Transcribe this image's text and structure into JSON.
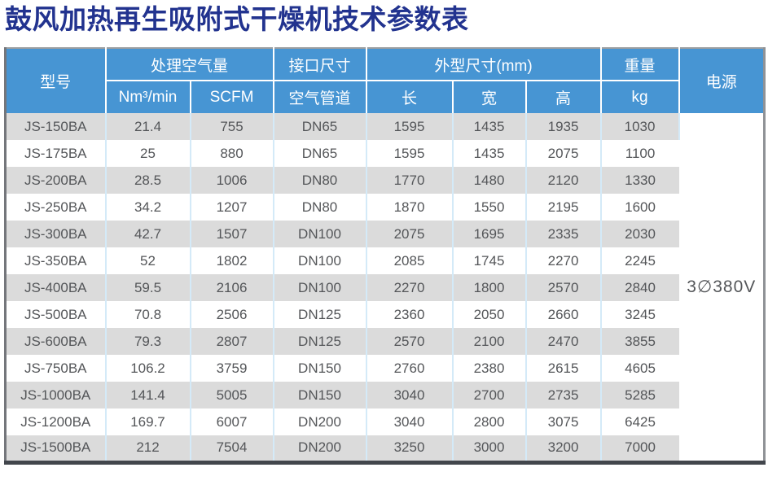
{
  "page_title": "鼓风加热再生吸附式干燥机技术参数表",
  "table": {
    "header": {
      "model": "型号",
      "air_volume_group": "处理空气量",
      "air_volume_sub": [
        "Nm³/min",
        "SCFM"
      ],
      "interface_group": "接口尺寸",
      "interface_sub": "空气管道",
      "dimensions_group": "外型尺寸(mm)",
      "dimensions_sub": [
        "长",
        "宽",
        "高"
      ],
      "weight_group": "重量",
      "weight_sub": "kg",
      "power": "电源"
    },
    "rows": [
      {
        "model": "JS-150BA",
        "nm3_min": "21.4",
        "scfm": "755",
        "pipe": "DN65",
        "length": "1595",
        "width": "1435",
        "height": "1935",
        "weight_kg": "1030"
      },
      {
        "model": "JS-175BA",
        "nm3_min": "25",
        "scfm": "880",
        "pipe": "DN65",
        "length": "1595",
        "width": "1435",
        "height": "2075",
        "weight_kg": "1100"
      },
      {
        "model": "JS-200BA",
        "nm3_min": "28.5",
        "scfm": "1006",
        "pipe": "DN80",
        "length": "1770",
        "width": "1480",
        "height": "2120",
        "weight_kg": "1330"
      },
      {
        "model": "JS-250BA",
        "nm3_min": "34.2",
        "scfm": "1207",
        "pipe": "DN80",
        "length": "1870",
        "width": "1550",
        "height": "2195",
        "weight_kg": "1600"
      },
      {
        "model": "JS-300BA",
        "nm3_min": "42.7",
        "scfm": "1507",
        "pipe": "DN100",
        "length": "2075",
        "width": "1695",
        "height": "2335",
        "weight_kg": "2030"
      },
      {
        "model": "JS-350BA",
        "nm3_min": "52",
        "scfm": "1802",
        "pipe": "DN100",
        "length": "2085",
        "width": "1745",
        "height": "2270",
        "weight_kg": "2245"
      },
      {
        "model": "JS-400BA",
        "nm3_min": "59.5",
        "scfm": "2106",
        "pipe": "DN100",
        "length": "2270",
        "width": "1800",
        "height": "2570",
        "weight_kg": "2840"
      },
      {
        "model": "JS-500BA",
        "nm3_min": "70.8",
        "scfm": "2506",
        "pipe": "DN125",
        "length": "2360",
        "width": "2050",
        "height": "2660",
        "weight_kg": "3245"
      },
      {
        "model": "JS-600BA",
        "nm3_min": "79.3",
        "scfm": "2807",
        "pipe": "DN125",
        "length": "2570",
        "width": "2100",
        "height": "2470",
        "weight_kg": "3855"
      },
      {
        "model": "JS-750BA",
        "nm3_min": "106.2",
        "scfm": "3759",
        "pipe": "DN150",
        "length": "2760",
        "width": "2380",
        "height": "2615",
        "weight_kg": "4605"
      },
      {
        "model": "JS-1000BA",
        "nm3_min": "141.4",
        "scfm": "5005",
        "pipe": "DN150",
        "length": "3040",
        "width": "2700",
        "height": "2735",
        "weight_kg": "5285"
      },
      {
        "model": "JS-1200BA",
        "nm3_min": "169.7",
        "scfm": "6007",
        "pipe": "DN200",
        "length": "3040",
        "width": "2800",
        "height": "3075",
        "weight_kg": "6425"
      },
      {
        "model": "JS-1500BA",
        "nm3_min": "212",
        "scfm": "7504",
        "pipe": "DN200",
        "length": "3250",
        "width": "3000",
        "height": "3200",
        "weight_kg": "7000"
      }
    ],
    "power_value": "3∅380V"
  },
  "colors": {
    "title_blue": "#22338F",
    "header_blue": "#4795D3",
    "stripe_gray": "#DBDBDB",
    "cell_text": "#545659",
    "divider_light_blue": "#D4EAF8",
    "bottom_border": "#42464C"
  }
}
